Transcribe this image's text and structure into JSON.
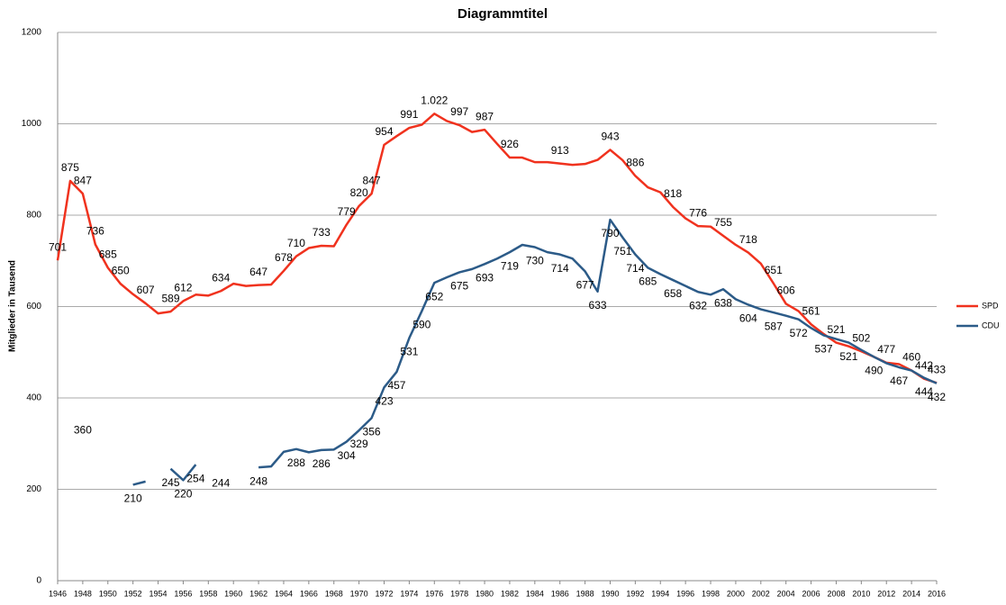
{
  "chart_data": {
    "type": "line",
    "title": "Diagrammtitel",
    "y_label": "Mitglieder in Tausend",
    "x": [
      1946,
      1947,
      1948,
      1949,
      1950,
      1951,
      1952,
      1953,
      1954,
      1955,
      1956,
      1957,
      1958,
      1959,
      1960,
      1961,
      1962,
      1963,
      1964,
      1965,
      1966,
      1967,
      1968,
      1969,
      1970,
      1971,
      1972,
      1973,
      1974,
      1975,
      1976,
      1977,
      1978,
      1979,
      1980,
      1981,
      1982,
      1983,
      1984,
      1985,
      1986,
      1987,
      1988,
      1989,
      1990,
      1991,
      1992,
      1993,
      1994,
      1995,
      1996,
      1997,
      1998,
      1999,
      2000,
      2001,
      2002,
      2003,
      2004,
      2005,
      2006,
      2007,
      2008,
      2009,
      2010,
      2011,
      2012,
      2013,
      2014,
      2015,
      2016
    ],
    "xlim": [
      1946,
      2016
    ],
    "xticks": [
      1946,
      1948,
      1950,
      1952,
      1954,
      1956,
      1958,
      1960,
      1962,
      1964,
      1966,
      1968,
      1970,
      1972,
      1974,
      1976,
      1978,
      1980,
      1982,
      1984,
      1986,
      1988,
      1990,
      1992,
      1994,
      1996,
      1998,
      2000,
      2002,
      2004,
      2006,
      2008,
      2010,
      2012,
      2014,
      2016
    ],
    "ylim": [
      0,
      1200
    ],
    "yticks": [
      0,
      200,
      400,
      600,
      800,
      1000,
      1200
    ],
    "grid": true,
    "legend": "right",
    "series": [
      {
        "name": "SPD",
        "color": "#f0321e",
        "values": [
          701,
          875,
          847,
          736,
          685,
          650,
          627,
          607,
          585,
          589,
          612,
          626,
          624,
          634,
          650,
          645,
          647,
          648,
          678,
          710,
          728,
          733,
          732,
          779,
          820,
          847,
          954,
          973,
          991,
          998,
          1022,
          1006,
          997,
          982,
          987,
          956,
          926,
          926,
          916,
          916,
          913,
          910,
          912,
          921,
          943,
          920,
          886,
          861,
          850,
          818,
          793,
          776,
          775,
          755,
          735,
          718,
          694,
          651,
          606,
          590,
          561,
          540,
          521,
          513,
          502,
          490,
          477,
          474,
          460,
          442,
          433
        ],
        "value_labels": [
          "701",
          "875",
          "847",
          "736",
          "685",
          "650",
          null,
          "607",
          null,
          "589",
          "612",
          null,
          null,
          "634",
          null,
          null,
          "647",
          null,
          "678",
          "710",
          null,
          "733",
          null,
          "779",
          "820",
          "847",
          "954",
          null,
          "991",
          null,
          "1.022",
          null,
          "997",
          null,
          "987",
          null,
          "926",
          null,
          null,
          null,
          "913",
          null,
          null,
          null,
          "943",
          null,
          "886",
          null,
          null,
          "818",
          null,
          "776",
          null,
          "755",
          null,
          "718",
          null,
          "651",
          "606",
          null,
          "561",
          null,
          "521",
          null,
          "502",
          null,
          "477",
          null,
          "460",
          "442",
          "433"
        ]
      },
      {
        "name": "CDU",
        "color": "#2c5b88",
        "values": [
          null,
          null,
          360,
          null,
          null,
          null,
          210,
          217,
          null,
          245,
          220,
          254,
          null,
          244,
          null,
          null,
          248,
          250,
          282,
          288,
          281,
          286,
          287,
          304,
          329,
          356,
          423,
          457,
          531,
          590,
          652,
          664,
          675,
          682,
          693,
          705,
          719,
          735,
          730,
          719,
          714,
          705,
          677,
          633,
          790,
          751,
          714,
          685,
          671,
          658,
          645,
          632,
          626,
          638,
          616,
          604,
          594,
          587,
          580,
          572,
          553,
          537,
          529,
          521,
          505,
          490,
          476,
          467,
          460,
          444,
          432
        ],
        "value_labels": [
          null,
          null,
          "360",
          null,
          null,
          null,
          "210",
          null,
          null,
          "245",
          "220",
          "254",
          null,
          "244",
          null,
          null,
          "248",
          null,
          null,
          "288",
          null,
          "286",
          null,
          "304",
          "329",
          "356",
          "423",
          "457",
          "531",
          "590",
          "652",
          null,
          "675",
          null,
          "693",
          null,
          "719",
          null,
          "730",
          null,
          "714",
          null,
          "677",
          "633",
          "790",
          "751",
          "714",
          "685",
          null,
          "658",
          null,
          "632",
          null,
          "638",
          null,
          "604",
          null,
          "587",
          null,
          "572",
          null,
          "537",
          null,
          "521",
          null,
          "490",
          null,
          "467",
          null,
          "444",
          "432"
        ]
      }
    ]
  }
}
